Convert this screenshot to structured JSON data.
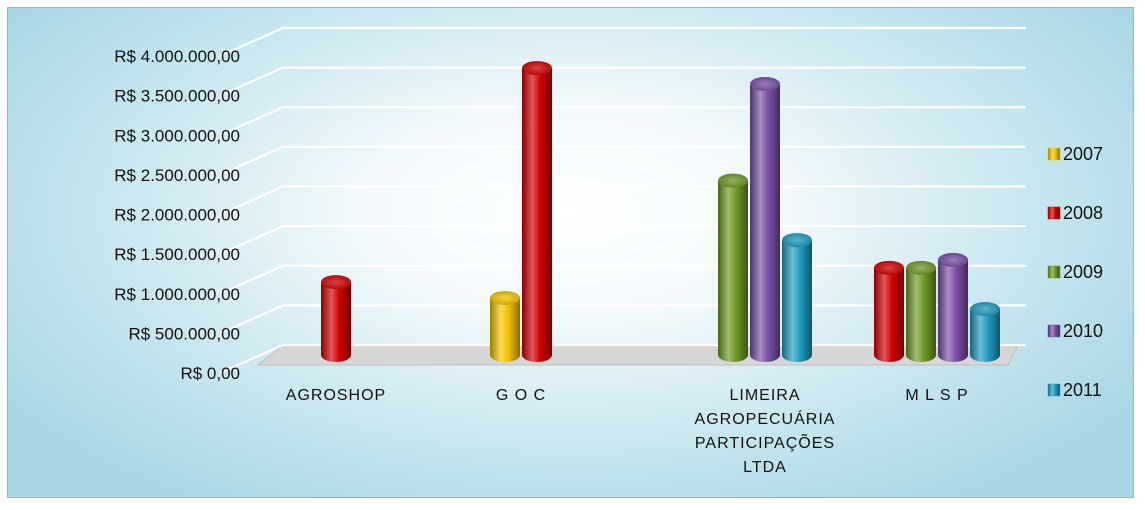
{
  "chart_data": {
    "type": "bar",
    "title": "",
    "xlabel": "",
    "ylabel": "",
    "ylim": [
      0,
      4000000
    ],
    "ytick_values": [
      0,
      500000,
      1000000,
      1500000,
      2000000,
      2500000,
      3000000,
      3500000,
      4000000
    ],
    "ytick_labels": [
      "R$ 0,00",
      "R$ 500.000,00",
      "R$ 1.000.000,00",
      "R$ 1.500.000,00",
      "R$ 2.000.000,00",
      "R$ 2.500.000,00",
      "R$ 3.000.000,00",
      "R$ 3.500.000,00",
      "R$ 4.000.000,00"
    ],
    "categories": [
      [
        "AGROSHOP"
      ],
      [
        "G O C"
      ],
      [
        "LIMEIRA",
        "AGROPECUÁRIA",
        "PARTICIPAÇÕES",
        "LTDA"
      ],
      [
        "M L S P"
      ]
    ],
    "series": [
      {
        "name": "2007",
        "color": "#f5c400",
        "values": [
          null,
          720000,
          null,
          null
        ]
      },
      {
        "name": "2008",
        "color": "#d40000",
        "values": [
          920000,
          3620000,
          null,
          1100000
        ]
      },
      {
        "name": "2009",
        "color": "#6f9a25",
        "values": [
          null,
          null,
          2200000,
          1100000
        ]
      },
      {
        "name": "2010",
        "color": "#7a4fa8",
        "values": [
          null,
          null,
          3420000,
          1200000
        ]
      },
      {
        "name": "2011",
        "color": "#1e9cc0",
        "values": [
          null,
          null,
          1450000,
          580000
        ]
      }
    ],
    "legend": "right",
    "grid": true,
    "style": "3d-cylinder"
  }
}
